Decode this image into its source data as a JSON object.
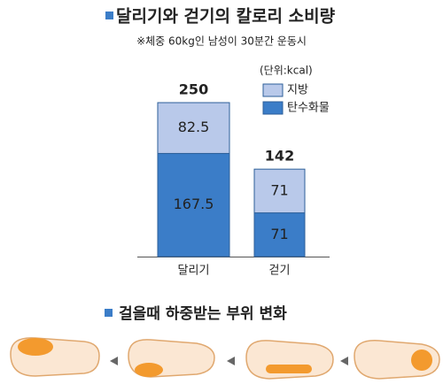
{
  "chart_data": {
    "type": "stacked-bar",
    "title": "달리기와 걷기의 칼로리 소비량",
    "subtitle": "※체중 60kg인 남성이 30분간 운동시",
    "unit_label": "(단위:kcal)",
    "categories": [
      "달리기",
      "걷기"
    ],
    "series": [
      {
        "name": "탄수화물",
        "color": "#3b7dc8",
        "values": [
          167.5,
          71
        ]
      },
      {
        "name": "지방",
        "color": "#b9c9ea",
        "values": [
          82.5,
          71
        ]
      }
    ],
    "totals": [
      250,
      142
    ]
  },
  "diagram": {
    "title": "걸을때 하중받는 부위 변화"
  }
}
